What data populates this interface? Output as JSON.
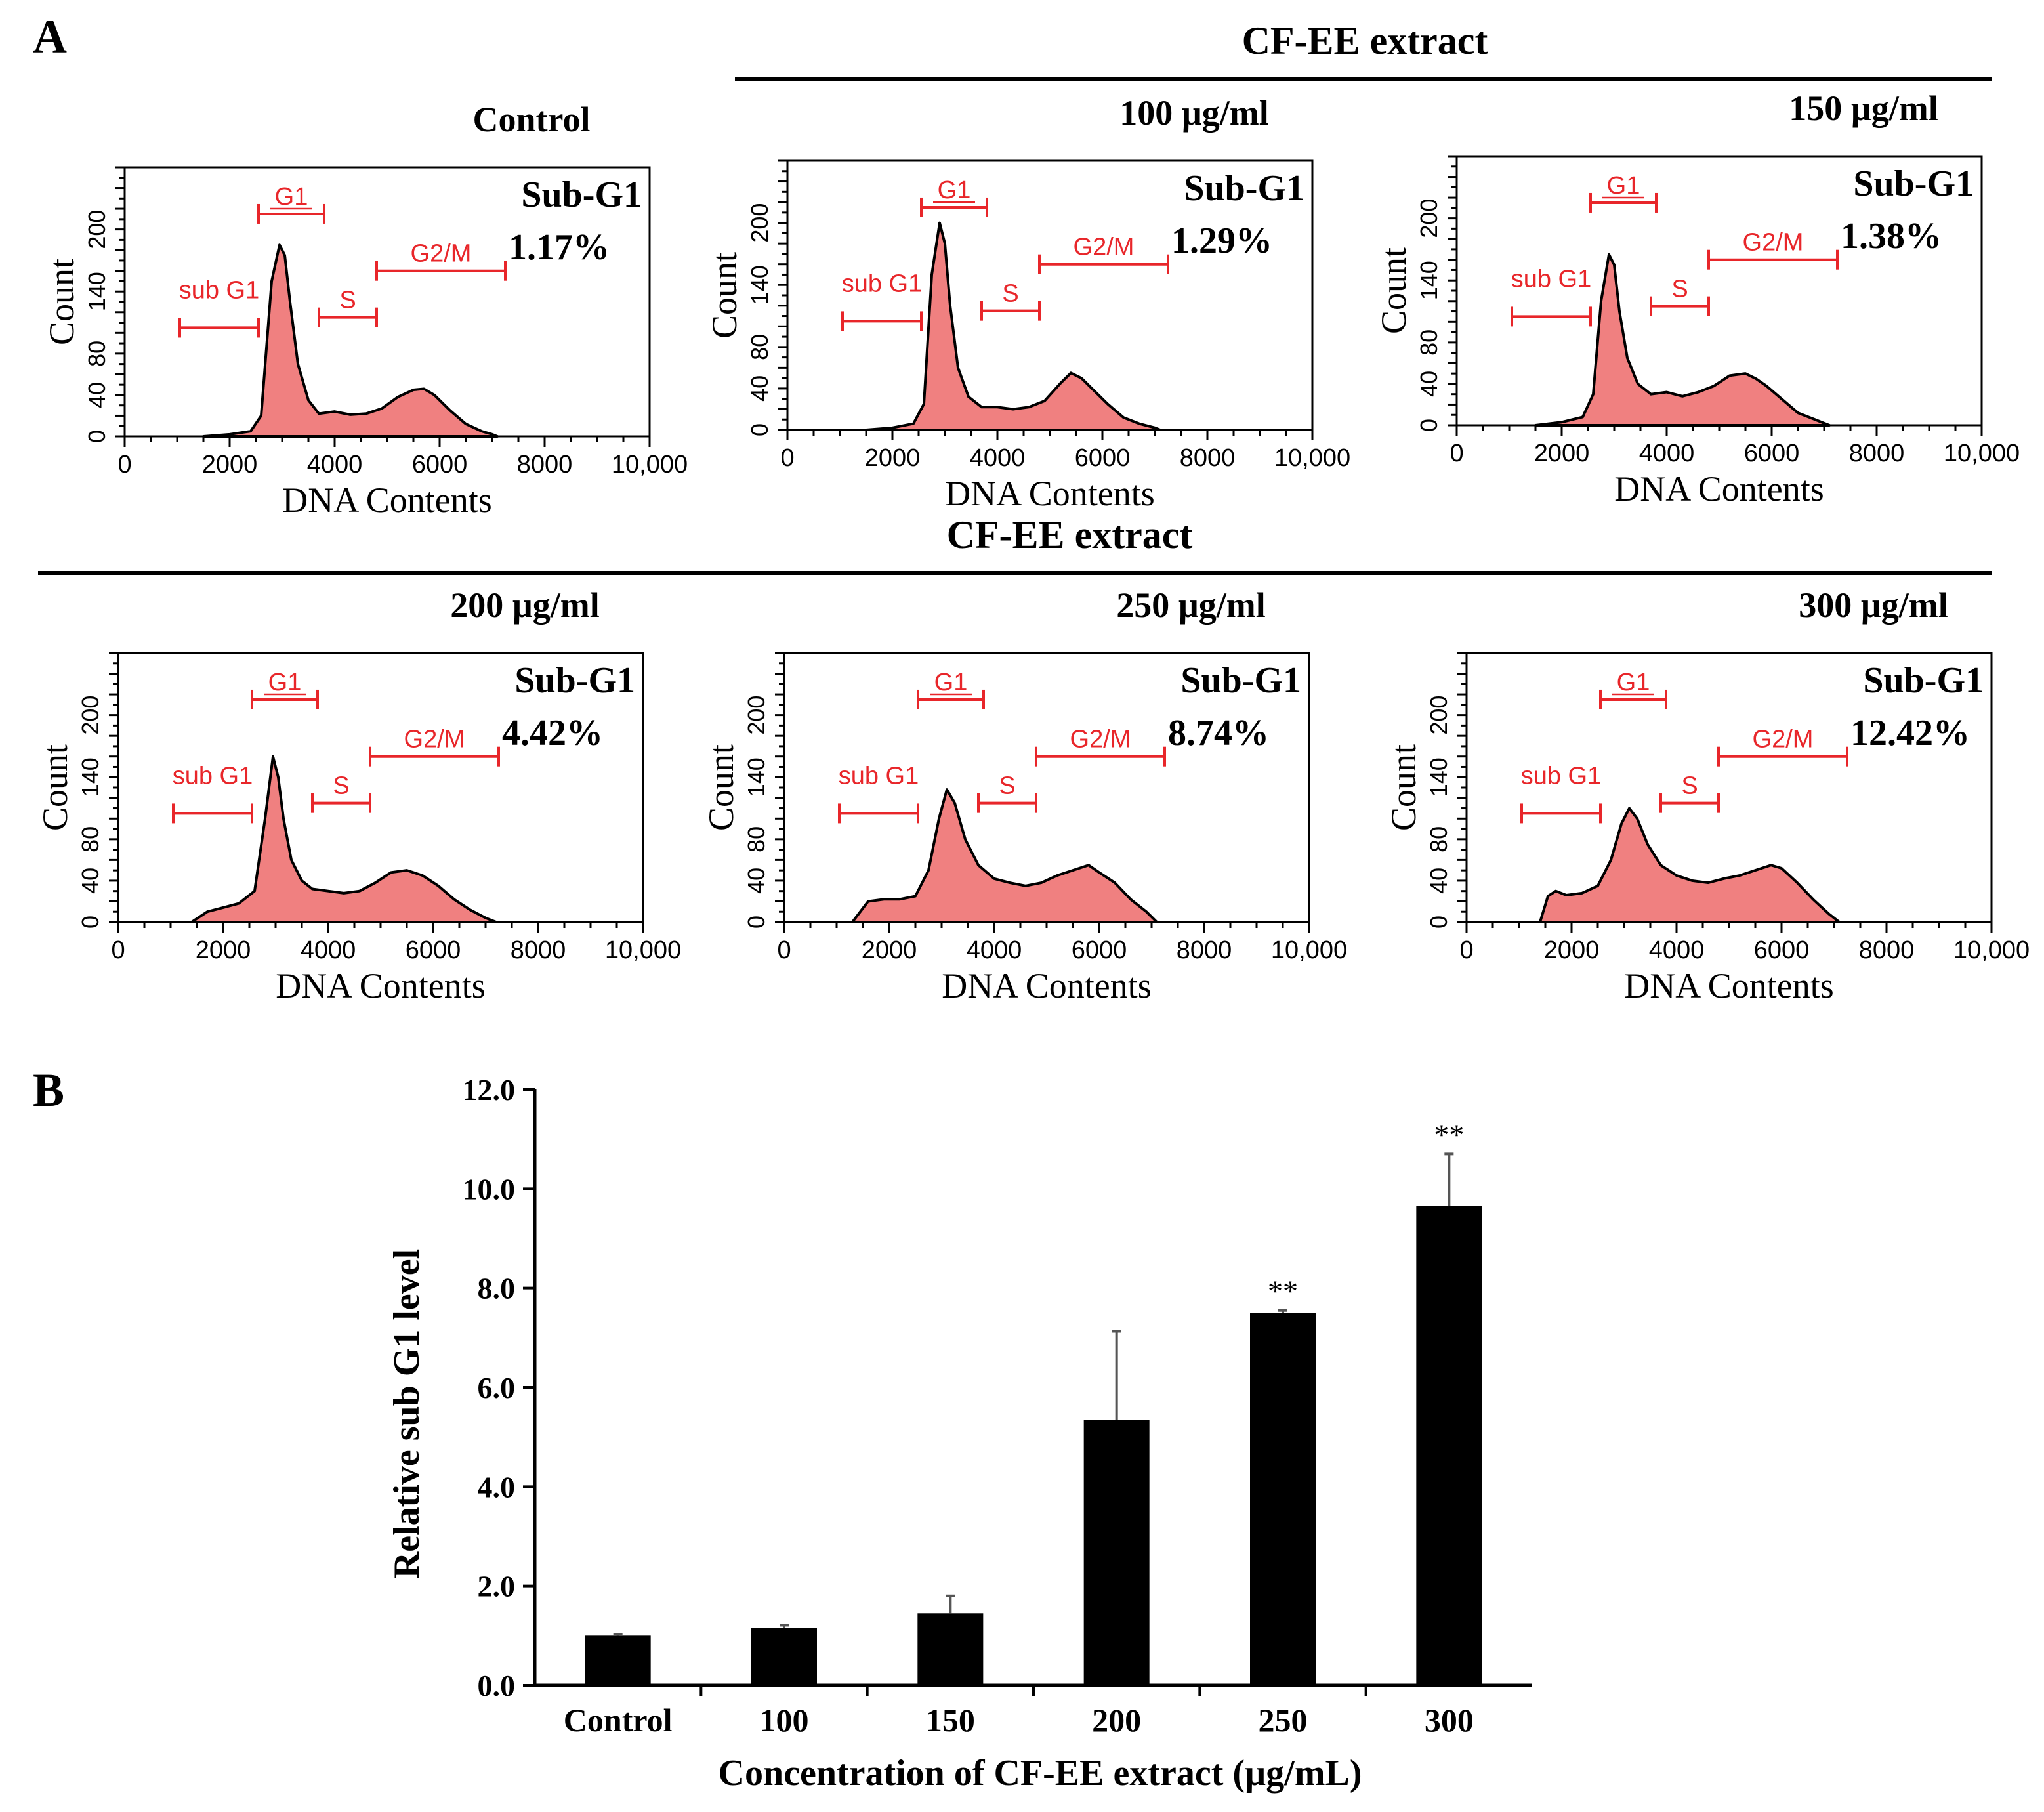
{
  "panel_a_label": "A",
  "panel_b_label": "B",
  "group_header_top": "CF-EE extract",
  "group_header_bottom": "CF-EE extract",
  "colors": {
    "fill": "#f08080",
    "gate": "#e8262a",
    "ink": "#000000"
  },
  "chart_data": [
    {
      "type": "area",
      "title": "Control",
      "xlabel": "DNA Contents",
      "ylabel": "Count",
      "xlim": [
        0,
        10000
      ],
      "ylim": [
        0,
        260
      ],
      "x_ticks": [
        "0",
        "2000",
        "4000",
        "6000",
        "8000",
        "10,000"
      ],
      "y_ticks": [
        "0",
        "40",
        "80",
        "140",
        "200"
      ],
      "annotation_title": "Sub-G1",
      "annotation_value": "1.17%",
      "gates": [
        {
          "label": "sub G1",
          "x_start": 1050,
          "x_end": 2550,
          "y": 105
        },
        {
          "label": "G1",
          "x_start": 2550,
          "x_end": 3800,
          "y": 215
        },
        {
          "label": "S",
          "x_start": 3700,
          "x_end": 4800,
          "y": 115
        },
        {
          "label": "G2/M",
          "x_start": 4800,
          "x_end": 7250,
          "y": 160
        }
      ],
      "histogram": {
        "x": [
          1500,
          2000,
          2400,
          2600,
          2800,
          2950,
          3050,
          3150,
          3300,
          3500,
          3700,
          4000,
          4300,
          4600,
          4900,
          5200,
          5500,
          5700,
          5900,
          6200,
          6500,
          6800,
          7000,
          7100
        ],
        "y": [
          0,
          2,
          5,
          20,
          150,
          185,
          175,
          130,
          70,
          35,
          22,
          24,
          21,
          22,
          27,
          38,
          45,
          46,
          40,
          25,
          12,
          5,
          2,
          0
        ]
      }
    },
    {
      "type": "area",
      "title": "100 µg/ml",
      "xlabel": "DNA Contents",
      "ylabel": "Count",
      "xlim": [
        0,
        10000
      ],
      "ylim": [
        0,
        260
      ],
      "x_ticks": [
        "0",
        "2000",
        "4000",
        "6000",
        "8000",
        "10,000"
      ],
      "y_ticks": [
        "0",
        "40",
        "80",
        "140",
        "200"
      ],
      "annotation_title": "Sub-G1",
      "annotation_value": "1.29%",
      "gates": [
        {
          "label": "sub G1",
          "x_start": 1050,
          "x_end": 2550,
          "y": 105
        },
        {
          "label": "G1",
          "x_start": 2550,
          "x_end": 3800,
          "y": 215
        },
        {
          "label": "S",
          "x_start": 3700,
          "x_end": 4800,
          "y": 115
        },
        {
          "label": "G2/M",
          "x_start": 4800,
          "x_end": 7250,
          "y": 160
        }
      ],
      "histogram": {
        "x": [
          1500,
          2000,
          2400,
          2600,
          2750,
          2900,
          3000,
          3100,
          3250,
          3450,
          3700,
          4000,
          4300,
          4600,
          4900,
          5200,
          5400,
          5600,
          5800,
          6100,
          6400,
          6700,
          7000,
          7100
        ],
        "y": [
          0,
          2,
          6,
          25,
          150,
          200,
          180,
          120,
          60,
          32,
          22,
          22,
          20,
          22,
          28,
          45,
          55,
          50,
          40,
          25,
          12,
          6,
          2,
          0
        ]
      }
    },
    {
      "type": "area",
      "title": "150 µg/ml",
      "xlabel": "DNA Contents",
      "ylabel": "Count",
      "xlim": [
        0,
        10000
      ],
      "ylim": [
        0,
        260
      ],
      "x_ticks": [
        "0",
        "2000",
        "4000",
        "6000",
        "8000",
        "10,000"
      ],
      "y_ticks": [
        "0",
        "40",
        "80",
        "140",
        "200"
      ],
      "annotation_title": "Sub-G1",
      "annotation_value": "1.38%",
      "gates": [
        {
          "label": "sub G1",
          "x_start": 1050,
          "x_end": 2550,
          "y": 105
        },
        {
          "label": "G1",
          "x_start": 2550,
          "x_end": 3800,
          "y": 215
        },
        {
          "label": "S",
          "x_start": 3700,
          "x_end": 4800,
          "y": 115
        },
        {
          "label": "G2/M",
          "x_start": 4800,
          "x_end": 7250,
          "y": 160
        }
      ],
      "histogram": {
        "x": [
          1500,
          2000,
          2400,
          2600,
          2750,
          2900,
          3000,
          3100,
          3250,
          3450,
          3700,
          4000,
          4300,
          4600,
          4900,
          5200,
          5500,
          5700,
          5900,
          6200,
          6500,
          6800,
          7000,
          7100
        ],
        "y": [
          0,
          3,
          8,
          30,
          120,
          165,
          155,
          110,
          65,
          40,
          30,
          32,
          28,
          32,
          38,
          48,
          50,
          45,
          38,
          25,
          12,
          6,
          2,
          0
        ]
      }
    },
    {
      "type": "area",
      "title": "200 µg/ml",
      "xlabel": "DNA Contents",
      "ylabel": "Count",
      "xlim": [
        0,
        10000
      ],
      "ylim": [
        0,
        260
      ],
      "x_ticks": [
        "0",
        "2000",
        "4000",
        "6000",
        "8000",
        "10,000"
      ],
      "y_ticks": [
        "0",
        "40",
        "80",
        "140",
        "200"
      ],
      "annotation_title": "Sub-G1",
      "annotation_value": "4.42%",
      "gates": [
        {
          "label": "sub G1",
          "x_start": 1050,
          "x_end": 2550,
          "y": 105
        },
        {
          "label": "G1",
          "x_start": 2550,
          "x_end": 3800,
          "y": 215
        },
        {
          "label": "S",
          "x_start": 3700,
          "x_end": 4800,
          "y": 115
        },
        {
          "label": "G2/M",
          "x_start": 4800,
          "x_end": 7250,
          "y": 160
        }
      ],
      "histogram": {
        "x": [
          1400,
          1700,
          2000,
          2300,
          2600,
          2800,
          2950,
          3050,
          3150,
          3300,
          3500,
          3700,
          4000,
          4300,
          4600,
          4900,
          5200,
          5500,
          5800,
          6100,
          6400,
          6700,
          7000,
          7200
        ],
        "y": [
          0,
          10,
          14,
          18,
          30,
          100,
          160,
          140,
          100,
          60,
          40,
          32,
          30,
          28,
          30,
          38,
          48,
          50,
          45,
          35,
          22,
          12,
          4,
          0
        ]
      }
    },
    {
      "type": "area",
      "title": "250 µg/ml",
      "xlabel": "DNA Contents",
      "ylabel": "Count",
      "xlim": [
        0,
        10000
      ],
      "ylim": [
        0,
        260
      ],
      "x_ticks": [
        "0",
        "2000",
        "4000",
        "6000",
        "8000",
        "10,000"
      ],
      "y_ticks": [
        "0",
        "40",
        "80",
        "140",
        "200"
      ],
      "annotation_title": "Sub-G1",
      "annotation_value": "8.74%",
      "gates": [
        {
          "label": "sub G1",
          "x_start": 1050,
          "x_end": 2550,
          "y": 105
        },
        {
          "label": "G1",
          "x_start": 2550,
          "x_end": 3800,
          "y": 215
        },
        {
          "label": "S",
          "x_start": 3700,
          "x_end": 4800,
          "y": 115
        },
        {
          "label": "G2/M",
          "x_start": 4800,
          "x_end": 7250,
          "y": 160
        }
      ],
      "histogram": {
        "x": [
          1300,
          1600,
          1900,
          2200,
          2500,
          2750,
          2950,
          3100,
          3250,
          3450,
          3700,
          4000,
          4300,
          4600,
          4900,
          5200,
          5500,
          5800,
          6000,
          6300,
          6600,
          6900,
          7100
        ],
        "y": [
          0,
          20,
          22,
          22,
          25,
          50,
          100,
          128,
          115,
          80,
          55,
          42,
          38,
          35,
          38,
          45,
          50,
          55,
          48,
          38,
          22,
          10,
          0
        ]
      }
    },
    {
      "type": "area",
      "title": "300 µg/ml",
      "xlabel": "DNA Contents",
      "ylabel": "Count",
      "xlim": [
        0,
        10000
      ],
      "ylim": [
        0,
        260
      ],
      "x_ticks": [
        "0",
        "2000",
        "4000",
        "6000",
        "8000",
        "10,000"
      ],
      "y_ticks": [
        "0",
        "40",
        "80",
        "140",
        "200"
      ],
      "annotation_title": "Sub-G1",
      "annotation_value": "12.42%",
      "gates": [
        {
          "label": "sub G1",
          "x_start": 1050,
          "x_end": 2550,
          "y": 105
        },
        {
          "label": "G1",
          "x_start": 2550,
          "x_end": 3800,
          "y": 215
        },
        {
          "label": "S",
          "x_start": 3700,
          "x_end": 4800,
          "y": 115
        },
        {
          "label": "G2/M",
          "x_start": 4800,
          "x_end": 7250,
          "y": 160
        }
      ],
      "histogram": {
        "x": [
          1400,
          1550,
          1700,
          1900,
          2200,
          2500,
          2750,
          2950,
          3100,
          3250,
          3450,
          3700,
          4000,
          4300,
          4600,
          4900,
          5200,
          5500,
          5800,
          6000,
          6300,
          6600,
          6900,
          7100
        ],
        "y": [
          0,
          25,
          30,
          26,
          28,
          35,
          60,
          95,
          110,
          100,
          75,
          55,
          45,
          40,
          38,
          42,
          45,
          50,
          55,
          52,
          38,
          22,
          8,
          0
        ]
      }
    },
    {
      "type": "bar",
      "title": "",
      "xlabel": "Concentration of CF-EE extract (µg/mL)",
      "ylabel": "Relative sub G1 level",
      "ylim": [
        0,
        12
      ],
      "y_ticks": [
        "0.0",
        "2.0",
        "4.0",
        "6.0",
        "8.0",
        "10.0",
        "12.0"
      ],
      "categories": [
        "Control",
        "100",
        "150",
        "200",
        "250",
        "300"
      ],
      "values": [
        1.0,
        1.15,
        1.45,
        5.35,
        7.5,
        9.65
      ],
      "errors": [
        0.03,
        0.06,
        0.35,
        1.78,
        0.05,
        1.05
      ],
      "significance": [
        "",
        "",
        "",
        "",
        "**",
        "**"
      ]
    }
  ]
}
